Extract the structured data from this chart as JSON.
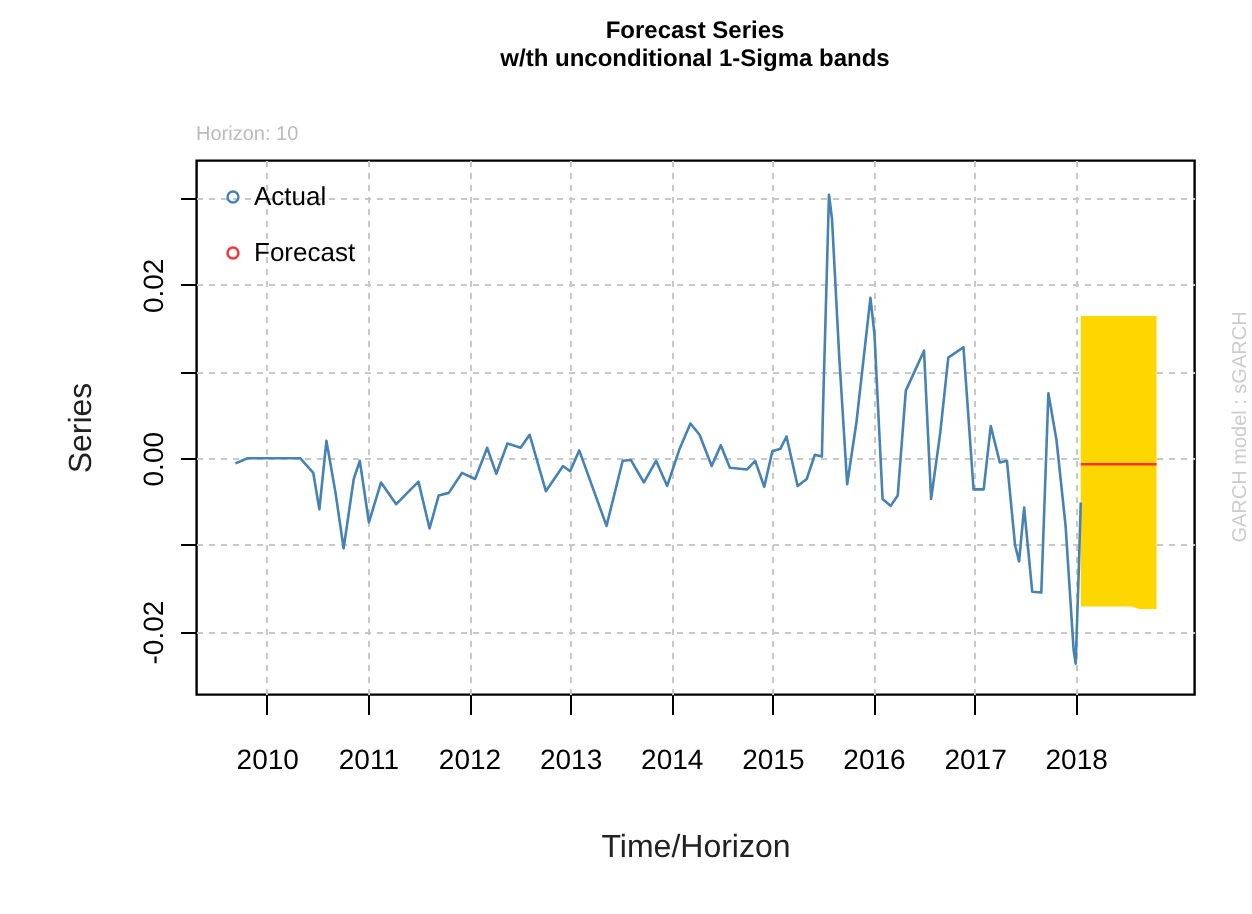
{
  "chart_data": {
    "type": "line",
    "title": "Forecast Series",
    "subtitle": "w/th unconditional 1-Sigma bands",
    "xlabel": "Time/Horizon",
    "ylabel": "Series",
    "annotations": [
      "Horizon: 10",
      "GARCH model : sGARCH"
    ],
    "xlim": [
      2009.3,
      2019.17
    ],
    "xticks": [
      2010,
      2011,
      2012,
      2013,
      2014,
      2015,
      2016,
      2017,
      2018
    ],
    "ylim": [
      -0.0272,
      0.0344
    ],
    "yticks": [
      {
        "value": -0.02,
        "label": "-0.02"
      },
      {
        "value": -0.01,
        "label": null
      },
      {
        "value": 0,
        "label": "0.00"
      },
      {
        "value": 0.01,
        "label": null
      },
      {
        "value": 0.02,
        "label": "0.02"
      },
      {
        "value": 0.03,
        "label": null
      }
    ],
    "grid": true,
    "legend": "top left",
    "line_style": "solid",
    "series": [
      {
        "name": "Actual",
        "color": "#4682b4",
        "x": [
          2009.69,
          2009.81,
          2010.0,
          2010.33,
          2010.46,
          2010.52,
          2010.59,
          2010.68,
          2010.76,
          2010.86,
          2010.92,
          2011.01,
          2011.13,
          2011.28,
          2011.5,
          2011.61,
          2011.7,
          2011.8,
          2011.93,
          2012.06,
          2012.18,
          2012.27,
          2012.38,
          2012.51,
          2012.6,
          2012.76,
          2012.93,
          2013.0,
          2013.09,
          2013.36,
          2013.52,
          2013.6,
          2013.73,
          2013.85,
          2013.96,
          2014.08,
          2014.19,
          2014.28,
          2014.4,
          2014.49,
          2014.58,
          2014.75,
          2014.83,
          2014.92,
          2015.0,
          2015.08,
          2015.14,
          2015.25,
          2015.34,
          2015.42,
          2015.49,
          2015.5,
          2015.56,
          2015.59,
          2015.66,
          2015.74,
          2015.83,
          2015.97,
          2016.01,
          2016.09,
          2016.17,
          2016.24,
          2016.32,
          2016.5,
          2016.57,
          2016.66,
          2016.74,
          2016.89,
          2016.99,
          2017.09,
          2017.16,
          2017.25,
          2017.32,
          2017.4,
          2017.44,
          2017.49,
          2017.57,
          2017.66,
          2017.73,
          2017.81,
          2017.9,
          2017.98,
          2018.0,
          2018.03,
          2018.05
        ],
        "values": [
          -0.0006,
          0,
          0,
          0,
          -0.0017,
          -0.0059,
          0.002,
          -0.004,
          -0.0104,
          -0.0024,
          -0.0003,
          -0.0074,
          -0.0028,
          -0.0053,
          -0.0027,
          -0.0081,
          -0.0043,
          -0.004,
          -0.0017,
          -0.0024,
          0.0012,
          -0.0018,
          0.0017,
          0.0012,
          0.0027,
          -0.0038,
          -0.0009,
          -0.0015,
          0.0009,
          -0.0078,
          -0.0003,
          -0.0002,
          -0.0028,
          -0.0003,
          -0.0032,
          0.001,
          0.004,
          0.0027,
          -0.0009,
          0.0015,
          -0.0011,
          -0.0013,
          -0.0003,
          -0.0033,
          0.0008,
          0.0011,
          0.0025,
          -0.0032,
          -0.0024,
          0.0004,
          0.0002,
          0.0052,
          0.0304,
          0.0276,
          0.012,
          -0.003,
          0.004,
          0.0185,
          0.0143,
          -0.0047,
          -0.0055,
          -0.0043,
          0.0078,
          0.0124,
          -0.0047,
          0.0029,
          0.0116,
          0.0128,
          -0.0036,
          -0.0036,
          0.0037,
          -0.0005,
          -0.0003,
          -0.01,
          -0.0119,
          -0.0057,
          -0.0154,
          -0.0155,
          0.0075,
          0.0021,
          -0.0078,
          -0.0222,
          -0.0237,
          -0.0131,
          -0.0051
        ]
      },
      {
        "name": "Forecast",
        "color": "#ff3030",
        "x": [
          2018.05,
          2018.13,
          2018.22,
          2018.3,
          2018.38,
          2018.47,
          2018.55,
          2018.63,
          2018.72,
          2018.8
        ],
        "values": [
          -0.0007,
          -0.0007,
          -0.0007,
          -0.0007,
          -0.0007,
          -0.0007,
          -0.0007,
          -0.0007,
          -0.0007,
          -0.0007
        ],
        "lower": [
          -0.0171,
          -0.0171,
          -0.0171,
          -0.0171,
          -0.0171,
          -0.0171,
          -0.0171,
          -0.0174,
          -0.0174,
          -0.0174
        ],
        "upper": [
          0.0164,
          0.0164,
          0.0164,
          0.0164,
          0.0164,
          0.0164,
          0.0164,
          0.0164,
          0.0164,
          0.0164
        ]
      }
    ]
  }
}
